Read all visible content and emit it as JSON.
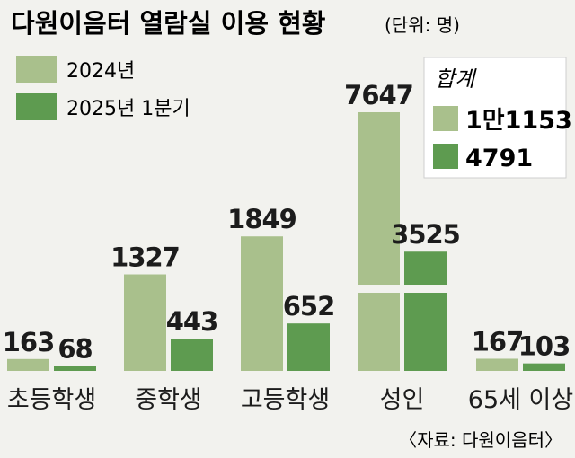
{
  "title": "다원이음터 열람실 이용 현황",
  "unit": "(단위: 명)",
  "source": "〈자료: 다원이음터〉",
  "colors": {
    "series_2024": "#a9c08c",
    "series_2025q1": "#5e9b50",
    "background": "#f2f2ee",
    "text": "#1c1c1c"
  },
  "totals": {
    "title": "합계",
    "items": [
      {
        "series": "2024년",
        "value": "1만1153"
      },
      {
        "series": "2025년 1분기",
        "value": "4791"
      }
    ]
  },
  "chart_data": {
    "type": "bar",
    "title": "다원이음터 열람실 이용 현황",
    "unit": "명",
    "categories": [
      "초등학생",
      "중학생",
      "고등학생",
      "성인",
      "65세 이상"
    ],
    "series": [
      {
        "name": "2024년",
        "values": [
          163,
          1327,
          1849,
          7647,
          167
        ]
      },
      {
        "name": "2025년 1분기",
        "values": [
          68,
          443,
          652,
          3525,
          103
        ]
      }
    ],
    "axis_break": "성인",
    "legend": "top-left",
    "grid": false
  }
}
